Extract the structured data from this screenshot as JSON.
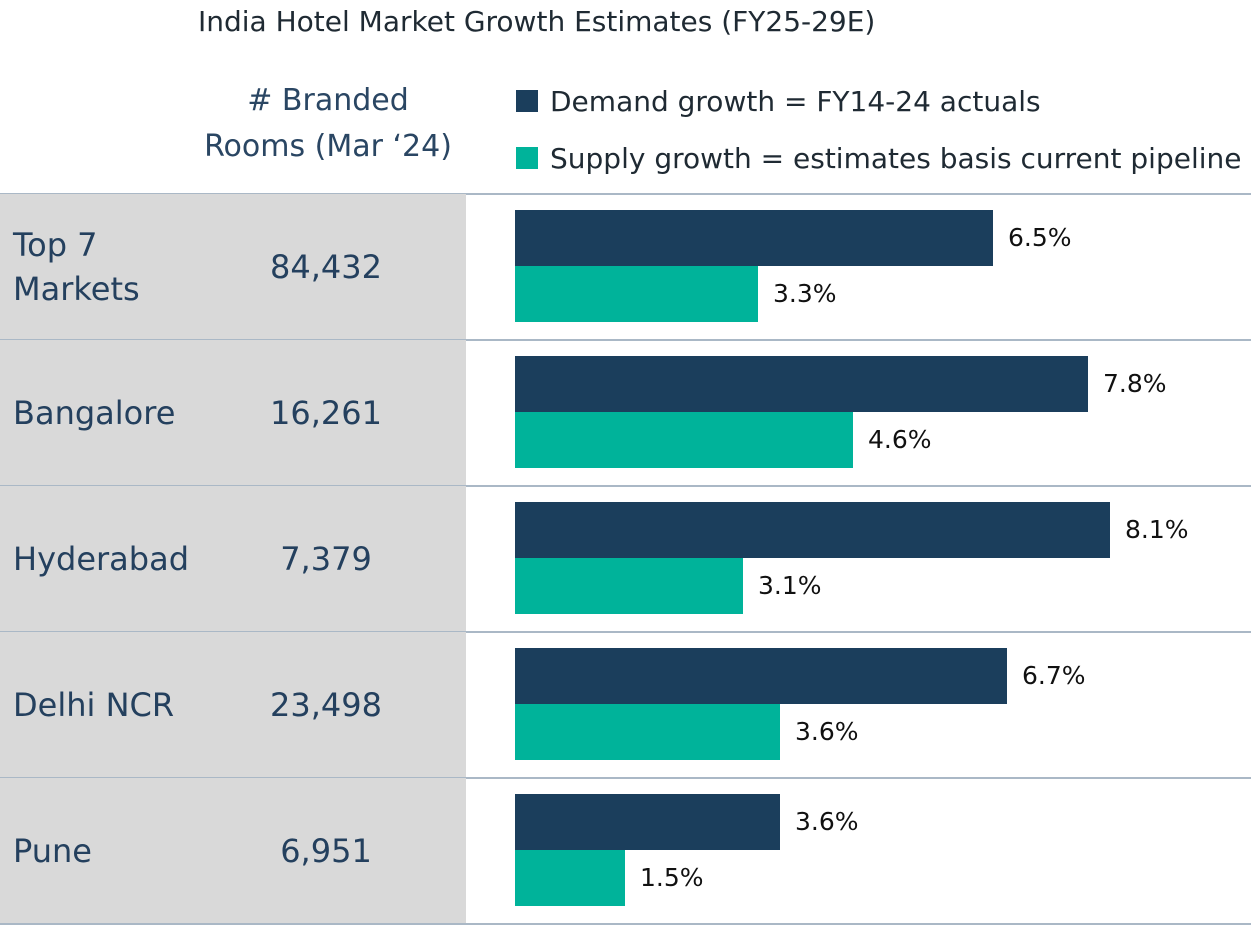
{
  "chart_data": {
    "type": "bar",
    "orientation": "horizontal",
    "title": "India Hotel Market Growth Estimates (FY25-29E)",
    "column_header": "# Branded Rooms (Mar ‘24)",
    "column_header_lines": [
      "# Branded",
      "Rooms (Mar ‘24)"
    ],
    "categories": [
      "Top 7 Markets",
      "Bangalore",
      "Hyderabad",
      "Delhi NCR",
      "Pune"
    ],
    "category_lines": [
      [
        "Top 7",
        "Markets"
      ],
      [
        "Bangalore"
      ],
      [
        "Hyderabad"
      ],
      [
        "Delhi NCR"
      ],
      [
        "Pune"
      ]
    ],
    "branded_rooms": [
      "84,432",
      "16,261",
      "7,379",
      "23,498",
      "6,951"
    ],
    "series": [
      {
        "name": "Demand growth = FY14-24 actuals",
        "color": "#1b3e5c",
        "values": [
          6.5,
          7.8,
          8.1,
          6.7,
          3.6
        ],
        "labels": [
          "6.5%",
          "7.8%",
          "8.1%",
          "6.7%",
          "3.6%"
        ]
      },
      {
        "name": "Supply growth = estimates basis current pipeline",
        "color": "#00b39a",
        "values": [
          3.3,
          4.6,
          3.1,
          3.6,
          1.5
        ],
        "labels": [
          "3.3%",
          "4.6%",
          "3.1%",
          "3.6%",
          "1.5%"
        ]
      }
    ],
    "xlim": [
      0,
      8.1
    ],
    "legend_position": "top-right"
  }
}
